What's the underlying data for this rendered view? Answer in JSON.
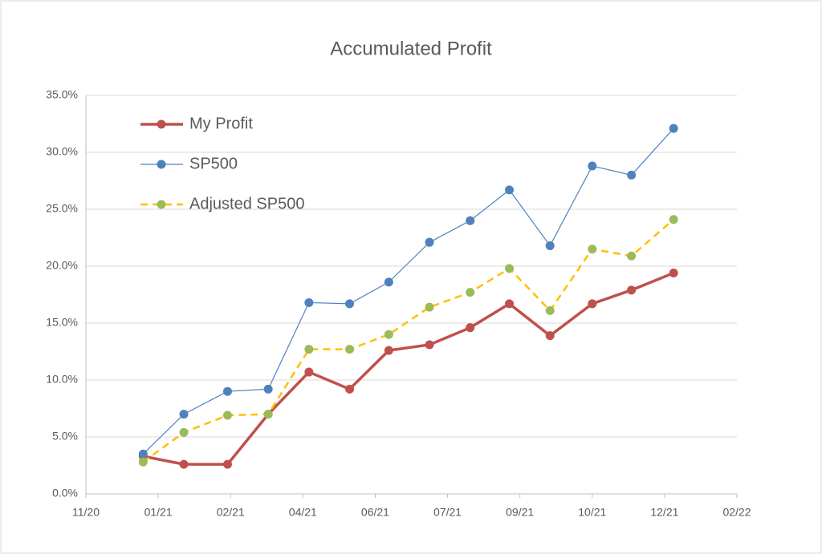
{
  "chart_data": {
    "type": "line",
    "title": "Accumulated Profit",
    "x": [
      44198,
      44225,
      44254,
      44281,
      44308,
      44335,
      44361,
      44388,
      44415,
      44441,
      44468,
      44496,
      44522,
      44550
    ],
    "xlim": [
      44160,
      44592
    ],
    "xticks": [
      {
        "value": 44160,
        "label": "11/20"
      },
      {
        "value": 44208,
        "label": "01/21"
      },
      {
        "value": 44256,
        "label": "02/21"
      },
      {
        "value": 44304,
        "label": "04/21"
      },
      {
        "value": 44352,
        "label": "06/21"
      },
      {
        "value": 44400,
        "label": "07/21"
      },
      {
        "value": 44448,
        "label": "09/21"
      },
      {
        "value": 44496,
        "label": "10/21"
      },
      {
        "value": 44544,
        "label": "12/21"
      },
      {
        "value": 44592,
        "label": "02/22"
      }
    ],
    "ylim": [
      0,
      35
    ],
    "yticks": [
      {
        "value": 0,
        "label": "0.0%"
      },
      {
        "value": 5,
        "label": "5.0%"
      },
      {
        "value": 10,
        "label": "10.0%"
      },
      {
        "value": 15,
        "label": "15.0%"
      },
      {
        "value": 20,
        "label": "20.0%"
      },
      {
        "value": 25,
        "label": "25.0%"
      },
      {
        "value": 30,
        "label": "30.0%"
      },
      {
        "value": 35,
        "label": "35.0%"
      }
    ],
    "grid": true,
    "legend": "upper-left",
    "series": [
      {
        "name": "My Profit",
        "color": "#c0504d",
        "marker_color": "#c0504d",
        "line_width": 3.5,
        "dashed": false,
        "values": [
          3.3,
          2.6,
          2.6,
          7.0,
          10.7,
          9.2,
          12.6,
          13.1,
          14.6,
          16.7,
          13.9,
          16.7,
          17.9,
          19.4
        ]
      },
      {
        "name": "SP500",
        "color": "#4f81bd",
        "marker_color": "#4f81bd",
        "line_width": 1.2,
        "dashed": false,
        "values": [
          3.5,
          7.0,
          9.0,
          9.2,
          16.8,
          16.7,
          18.6,
          22.1,
          24.0,
          26.7,
          21.8,
          28.8,
          28.0,
          32.1
        ]
      },
      {
        "name": "Adjusted SP500",
        "color": "#ffc000",
        "marker_color": "#9bbb59",
        "line_width": 2.5,
        "dashed": true,
        "values": [
          2.8,
          5.4,
          6.9,
          7.0,
          12.7,
          12.7,
          14.0,
          16.4,
          17.7,
          19.8,
          16.1,
          21.5,
          20.9,
          24.1
        ]
      }
    ]
  }
}
